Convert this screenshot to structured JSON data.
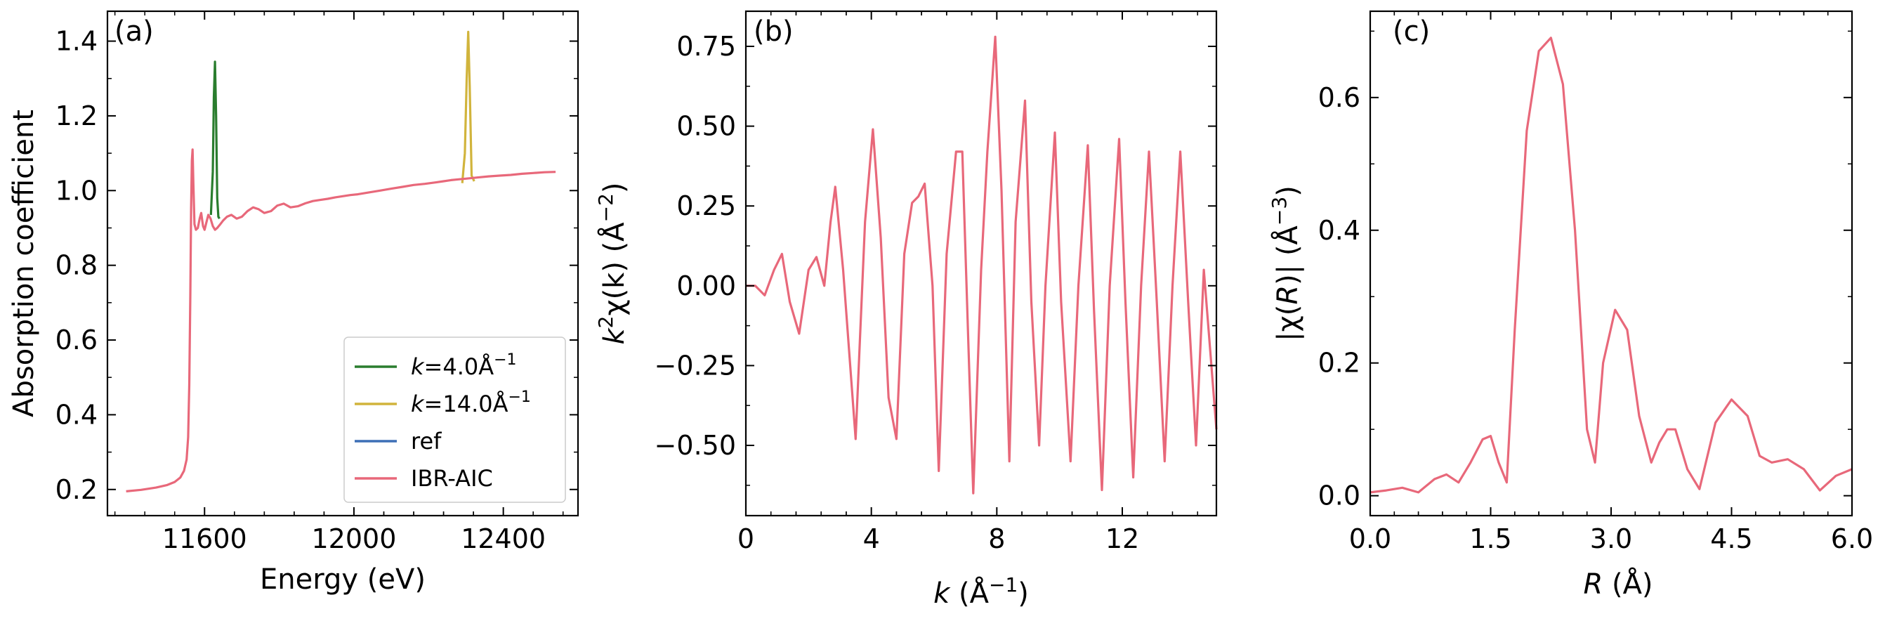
{
  "chart_data": [
    {
      "type": "line",
      "panel_label": "(a)",
      "xlabel": "Energy (eV)",
      "ylabel": "Absorption coefficient",
      "xlim": [
        11340,
        12600
      ],
      "ylim": [
        0.13,
        1.48
      ],
      "xticks": [
        11600,
        12000,
        12400
      ],
      "xtick_labels": [
        "11600",
        "12000",
        "12400"
      ],
      "yticks": [
        0.2,
        0.4,
        0.6,
        0.8,
        1.0,
        1.2,
        1.4
      ],
      "ytick_labels": [
        "0.2",
        "0.4",
        "0.6",
        "0.8",
        "1.0",
        "1.2",
        "1.4"
      ],
      "legend_position": "lower-right",
      "series": [
        {
          "name": "k=4.0Å−1",
          "legend_label": {
            "prefix": "k",
            "middle": "=4.0Å",
            "sup": "−1"
          },
          "color": "#2a7d2e",
          "x": [
            11617,
            11622,
            11625,
            11628,
            11631,
            11634,
            11637,
            11640
          ],
          "y": [
            0.935,
            1.05,
            1.25,
            1.345,
            1.2,
            0.98,
            0.93,
            0.925
          ]
        },
        {
          "name": "k=14.0Å−1",
          "legend_label": {
            "prefix": "k",
            "middle": "=14.0Å",
            "sup": "−1"
          },
          "color": "#d1b43c",
          "x": [
            12290,
            12297,
            12302,
            12306,
            12310,
            12315,
            12322
          ],
          "y": [
            1.02,
            1.1,
            1.3,
            1.425,
            1.28,
            1.04,
            1.025
          ]
        },
        {
          "name": "ref",
          "legend_label": {
            "prefix": "",
            "middle": "ref",
            "sup": ""
          },
          "color": "#3d6fb6",
          "x": [],
          "y": []
        },
        {
          "name": "IBR-AIC",
          "legend_label": {
            "prefix": "",
            "middle": "IBR-AIC",
            "sup": ""
          },
          "color": "#e8687a",
          "x": [
            11390,
            11430,
            11470,
            11500,
            11520,
            11535,
            11545,
            11552,
            11556,
            11559,
            11562,
            11564,
            11566,
            11568,
            11570,
            11573,
            11577,
            11582,
            11587,
            11591,
            11596,
            11600,
            11605,
            11610,
            11616,
            11622,
            11628,
            11634,
            11642,
            11650,
            11660,
            11672,
            11686,
            11700,
            11715,
            11730,
            11745,
            11760,
            11778,
            11795,
            11812,
            11830,
            11850,
            11870,
            11890,
            11910,
            11930,
            11950,
            11970,
            11990,
            12010,
            12040,
            12070,
            12100,
            12130,
            12160,
            12190,
            12220,
            12240,
            12260,
            12280,
            12300,
            12330,
            12360,
            12390,
            12420,
            12450,
            12480,
            12510,
            12540
          ],
          "y": [
            0.195,
            0.199,
            0.205,
            0.212,
            0.22,
            0.232,
            0.25,
            0.28,
            0.34,
            0.48,
            0.72,
            0.95,
            1.08,
            1.11,
            1.02,
            0.91,
            0.895,
            0.9,
            0.925,
            0.94,
            0.905,
            0.895,
            0.915,
            0.935,
            0.925,
            0.905,
            0.895,
            0.9,
            0.91,
            0.92,
            0.93,
            0.935,
            0.925,
            0.93,
            0.945,
            0.955,
            0.95,
            0.94,
            0.945,
            0.96,
            0.965,
            0.955,
            0.958,
            0.966,
            0.972,
            0.975,
            0.978,
            0.982,
            0.985,
            0.988,
            0.99,
            0.995,
            1.0,
            1.005,
            1.01,
            1.015,
            1.018,
            1.022,
            1.025,
            1.028,
            1.03,
            1.032,
            1.035,
            1.038,
            1.04,
            1.042,
            1.045,
            1.047,
            1.049,
            1.05
          ]
        }
      ]
    },
    {
      "type": "line",
      "panel_label": "(b)",
      "xlabel": {
        "var": "k",
        "prefix": " (Å",
        "sup": "−1",
        "suffix": ")"
      },
      "ylabel": {
        "var": "k",
        "sup1": "2",
        "mid": "χ(k) (Å",
        "sup2": "−2",
        "suffix": ")"
      },
      "xlim": [
        0,
        15
      ],
      "ylim": [
        -0.72,
        0.86
      ],
      "xticks": [
        0,
        4,
        8,
        12
      ],
      "xtick_labels": [
        "0",
        "4",
        "8",
        "12"
      ],
      "yticks": [
        -0.5,
        -0.25,
        0.0,
        0.25,
        0.5,
        0.75
      ],
      "ytick_labels": [
        "−0.50",
        "−0.25",
        "0.00",
        "0.25",
        "0.50",
        "0.75"
      ],
      "series": [
        {
          "name": "",
          "color": "#e8687a",
          "x": [
            0,
            0.3,
            0.6,
            0.9,
            1.15,
            1.4,
            1.7,
            2.0,
            2.25,
            2.5,
            2.7,
            2.85,
            3.1,
            3.5,
            3.8,
            4.05,
            4.3,
            4.55,
            4.8,
            5.05,
            5.3,
            5.5,
            5.7,
            5.95,
            6.15,
            6.4,
            6.7,
            6.9,
            7.1,
            7.25,
            7.5,
            7.7,
            7.95,
            8.15,
            8.4,
            8.6,
            8.9,
            9.1,
            9.35,
            9.55,
            9.85,
            10.05,
            10.35,
            10.6,
            10.9,
            11.1,
            11.35,
            11.6,
            11.9,
            12.1,
            12.35,
            12.6,
            12.85,
            13.1,
            13.35,
            13.6,
            13.85,
            14.1,
            14.35,
            14.6,
            14.8,
            15.0
          ],
          "y": [
            0.0,
            0.0,
            -0.03,
            0.05,
            0.1,
            -0.05,
            -0.15,
            0.05,
            0.09,
            0.0,
            0.2,
            0.31,
            0.05,
            -0.48,
            0.2,
            0.49,
            0.15,
            -0.35,
            -0.48,
            0.1,
            0.26,
            0.28,
            0.32,
            0.0,
            -0.58,
            0.1,
            0.42,
            0.42,
            -0.2,
            -0.65,
            0.05,
            0.42,
            0.78,
            0.3,
            -0.55,
            0.2,
            0.58,
            -0.05,
            -0.5,
            0.0,
            0.48,
            -0.05,
            -0.55,
            0.0,
            0.44,
            -0.08,
            -0.64,
            0.0,
            0.46,
            -0.05,
            -0.6,
            0.0,
            0.42,
            -0.05,
            -0.55,
            0.0,
            0.42,
            -0.05,
            -0.5,
            0.05,
            -0.2,
            -0.45
          ]
        }
      ]
    },
    {
      "type": "line",
      "panel_label": "(c)",
      "xlabel": {
        "var": "R",
        "suffix": " (Å)"
      },
      "ylabel": {
        "pre": "|χ(",
        "var": "R",
        "mid": ")| (Å",
        "sup": "−3",
        "suffix": ")"
      },
      "xlim": [
        0,
        6
      ],
      "ylim": [
        -0.03,
        0.73
      ],
      "xticks": [
        0,
        1.5,
        3,
        4.5,
        6
      ],
      "xtick_labels": [
        "0.0",
        "1.5",
        "3.0",
        "4.5",
        "6.0"
      ],
      "yticks": [
        0.0,
        0.2,
        0.4,
        0.6
      ],
      "ytick_labels": [
        "0.0",
        "0.2",
        "0.4",
        "0.6"
      ],
      "series": [
        {
          "name": "",
          "color": "#e8687a",
          "x": [
            0,
            0.2,
            0.4,
            0.6,
            0.8,
            0.95,
            1.1,
            1.25,
            1.4,
            1.5,
            1.6,
            1.7,
            1.8,
            1.95,
            2.1,
            2.25,
            2.4,
            2.55,
            2.7,
            2.8,
            2.9,
            3.05,
            3.2,
            3.35,
            3.5,
            3.6,
            3.7,
            3.8,
            3.95,
            4.1,
            4.3,
            4.5,
            4.7,
            4.85,
            5.0,
            5.2,
            5.4,
            5.6,
            5.8,
            6.0
          ],
          "y": [
            0.005,
            0.008,
            0.012,
            0.005,
            0.025,
            0.032,
            0.02,
            0.05,
            0.085,
            0.09,
            0.05,
            0.02,
            0.25,
            0.55,
            0.67,
            0.69,
            0.62,
            0.4,
            0.1,
            0.05,
            0.2,
            0.28,
            0.25,
            0.12,
            0.05,
            0.08,
            0.1,
            0.1,
            0.04,
            0.01,
            0.11,
            0.145,
            0.12,
            0.06,
            0.05,
            0.055,
            0.04,
            0.008,
            0.03,
            0.04
          ]
        }
      ]
    }
  ]
}
